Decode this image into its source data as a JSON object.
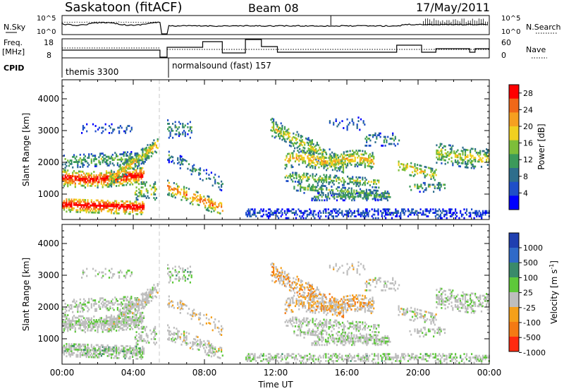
{
  "header": {
    "station": "Saskatoon (fitACF)",
    "beam": "Beam 08",
    "date": "17/May/2011"
  },
  "top_panels": {
    "nsky_label": "N.Sky",
    "nsky_ticks": [
      "10^5",
      "10^0"
    ],
    "nsearch_label": "N.Search",
    "freq_label": "Freq.",
    "freq_unit": "[MHz]",
    "freq_ticks": [
      "18",
      "8"
    ],
    "nave_label": "Nave",
    "nave_ticks": [
      "60",
      "0"
    ],
    "cpid_label": "CPID"
  },
  "cpid_segments": [
    {
      "name": "themis 3300",
      "start_h": 0.0,
      "end_h": 5.5
    },
    {
      "name": "normalsound (fast) 157",
      "start_h": 5.5,
      "end_h": 24.0
    }
  ],
  "colors": {
    "power_scale": [
      "#0000ff",
      "#1f4fc8",
      "#2e6e8c",
      "#3c9a5a",
      "#7dbe3a",
      "#f0d020",
      "#f6a020",
      "#f06818",
      "#ff0000"
    ],
    "velocity_scale": [
      "#1f3fb0",
      "#2f6ac8",
      "#3a8a6a",
      "#5ec83a",
      "#bebebe",
      "#f5a01a",
      "#f47a14",
      "#ff2a10"
    ]
  },
  "chart_data": [
    {
      "type": "heatmap",
      "title": "Power",
      "ylabel": "Slant Range [km]",
      "yticks": [
        "1000",
        "2000",
        "3000",
        "4000"
      ],
      "ylim": [
        200,
        4600
      ],
      "xlim": [
        0,
        24
      ],
      "xticks": [
        "00:00",
        "04:00",
        "08:00",
        "12:00",
        "16:00",
        "20:00",
        "00:00"
      ],
      "colorbar_label": "Power [dB]",
      "colorbar_ticks": [
        "4",
        "8",
        "12",
        "16",
        "20",
        "24",
        "28"
      ],
      "colorbar_range": [
        0,
        30
      ],
      "data_gap_hours": [
        9.0,
        10.3
      ]
    },
    {
      "type": "heatmap",
      "title": "Velocity",
      "ylabel": "Slant Range [km]",
      "yticks": [
        "1000",
        "2000",
        "3000",
        "4000"
      ],
      "ylim": [
        200,
        4600
      ],
      "xlim": [
        0,
        24
      ],
      "xlabel": "Time UT",
      "xticks": [
        "00:00",
        "04:00",
        "08:00",
        "12:00",
        "16:00",
        "20:00",
        "00:00"
      ],
      "colorbar_label": "Velocity [m s",
      "colorbar_label_sup": "-1",
      "colorbar_label_end": "]",
      "colorbar_ticks": [
        "1000",
        "500",
        "100",
        "25",
        "-25",
        "-100",
        "-500",
        "-1000"
      ],
      "data_gap_hours": [
        9.0,
        10.3
      ]
    }
  ]
}
